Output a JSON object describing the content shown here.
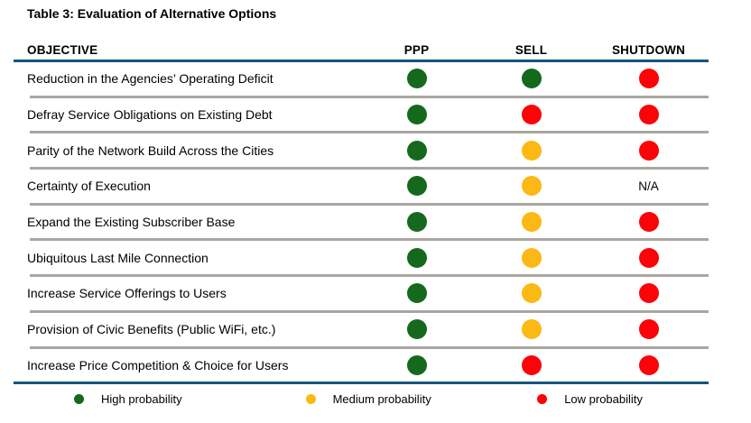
{
  "title": "Table 3: Evaluation of Alternative Options",
  "columns": [
    "OBJECTIVE",
    "PPP",
    "SELL",
    "SHUTDOWN"
  ],
  "rating_labels": {
    "green": "High probability",
    "yellow": "Medium probability",
    "red": "Low probability"
  },
  "rows": [
    {
      "objective": "Reduction in the Agencies’ Operating Deficit",
      "ppp": "green",
      "sell": "green",
      "shutdown": "red"
    },
    {
      "objective": "Defray Service Obligations on Existing Debt",
      "ppp": "green",
      "sell": "red",
      "shutdown": "red"
    },
    {
      "objective": "Parity of the Network Build Across the Cities",
      "ppp": "green",
      "sell": "yellow",
      "shutdown": "red"
    },
    {
      "objective": "Certainty of Execution",
      "ppp": "green",
      "sell": "yellow",
      "shutdown": "N/A"
    },
    {
      "objective": "Expand the Existing Subscriber Base",
      "ppp": "green",
      "sell": "yellow",
      "shutdown": "red"
    },
    {
      "objective": "Ubiquitous Last Mile Connection",
      "ppp": "green",
      "sell": "yellow",
      "shutdown": "red"
    },
    {
      "objective": "Increase Service Offerings to Users",
      "ppp": "green",
      "sell": "yellow",
      "shutdown": "red"
    },
    {
      "objective": "Provision of Civic Benefits (Public WiFi, etc.)",
      "ppp": "green",
      "sell": "yellow",
      "shutdown": "red"
    },
    {
      "objective": "Increase Price Competition & Choice for Users",
      "ppp": "green",
      "sell": "red",
      "shutdown": "red"
    }
  ],
  "legend": [
    {
      "color": "green",
      "label": "High probability"
    },
    {
      "color": "yellow",
      "label": "Medium probability"
    },
    {
      "color": "red",
      "label": "Low probability"
    }
  ],
  "colors": {
    "green": "#15691d",
    "yellow": "#fcb813",
    "red": "#fb0307",
    "rule_blue": "#15557e",
    "rule_gray": "#a9a7a2"
  }
}
